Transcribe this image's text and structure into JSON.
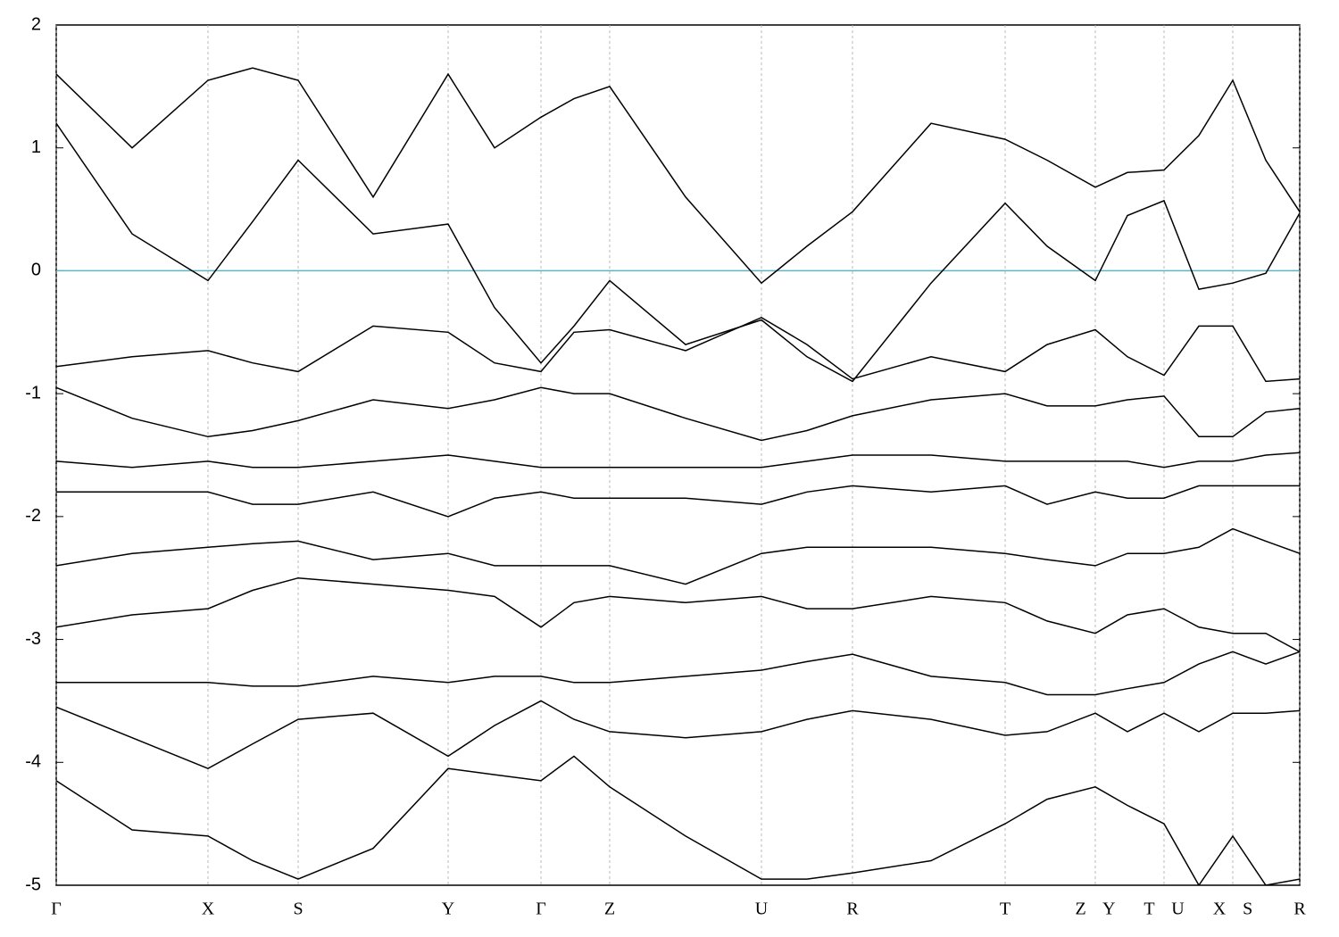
{
  "chart_data": {
    "type": "line",
    "x": [
      0,
      0.85,
      1.7,
      2.2,
      2.71,
      3.55,
      4.39,
      4.91,
      5.43,
      5.8,
      6.2,
      7.05,
      7.9,
      8.41,
      8.92,
      9.8,
      10.63,
      11.1,
      11.64,
      12.0,
      12.41,
      12.8,
      13.18,
      13.55,
      13.93
    ],
    "xlim": [
      0,
      13.93
    ],
    "xticks": [
      {
        "value": 0,
        "label": "Γ"
      },
      {
        "value": 1.7,
        "label": "X"
      },
      {
        "value": 2.71,
        "label": "S"
      },
      {
        "value": 4.39,
        "label": "Y"
      },
      {
        "value": 5.43,
        "label": "Γ"
      },
      {
        "value": 6.2,
        "label": "Z"
      },
      {
        "value": 7.9,
        "label": "U"
      },
      {
        "value": 8.92,
        "label": "R"
      },
      {
        "value": 10.63,
        "label": "T"
      },
      {
        "value": 11.64,
        "label": "Z Y"
      },
      {
        "value": 12.41,
        "label": "T U"
      },
      {
        "value": 13.18,
        "label": "X S"
      },
      {
        "value": 13.93,
        "label": "R"
      }
    ],
    "ylim": [
      -5,
      2
    ],
    "yticks": [
      -5,
      -4,
      -3,
      -2,
      -1,
      0,
      1,
      2
    ],
    "grid": true,
    "hline": {
      "value": 0,
      "color": "#5fb3c4"
    },
    "series": [
      {
        "color": "#000000",
        "values": [
          1.2,
          0.3,
          -0.08,
          0.4,
          0.9,
          0.3,
          0.38,
          -0.3,
          -0.75,
          -0.45,
          -0.08,
          -0.6,
          -0.4,
          -0.7,
          -0.9,
          -0.1,
          0.55,
          0.2,
          -0.08,
          0.45,
          0.57,
          -0.15,
          -0.1,
          -0.02,
          0.47
        ]
      },
      {
        "color": "#000000",
        "values": [
          1.6,
          1.0,
          1.55,
          1.65,
          1.55,
          0.6,
          1.6,
          1.0,
          1.25,
          1.4,
          1.5,
          0.6,
          -0.1,
          0.2,
          0.48,
          1.2,
          1.07,
          0.9,
          0.68,
          0.8,
          0.82,
          1.1,
          1.55,
          0.9,
          0.48
        ]
      },
      {
        "color": "#000000",
        "values": [
          -0.78,
          -0.7,
          -0.65,
          -0.75,
          -0.82,
          -0.45,
          -0.5,
          -0.75,
          -0.82,
          -0.5,
          -0.48,
          -0.65,
          -0.38,
          -0.6,
          -0.88,
          -0.7,
          -0.82,
          -0.6,
          -0.48,
          -0.7,
          -0.85,
          -0.45,
          -0.45,
          -0.9,
          -0.88
        ]
      },
      {
        "color": "#000000",
        "values": [
          -0.95,
          -1.2,
          -1.35,
          -1.3,
          -1.22,
          -1.05,
          -1.12,
          -1.05,
          -0.95,
          -1.0,
          -1.0,
          -1.2,
          -1.38,
          -1.3,
          -1.18,
          -1.05,
          -1.0,
          -1.1,
          -1.1,
          -1.05,
          -1.02,
          -1.35,
          -1.35,
          -1.15,
          -1.12
        ]
      },
      {
        "color": "#000000",
        "values": [
          -1.55,
          -1.6,
          -1.55,
          -1.6,
          -1.6,
          -1.55,
          -1.5,
          -1.55,
          -1.6,
          -1.6,
          -1.6,
          -1.6,
          -1.6,
          -1.55,
          -1.5,
          -1.5,
          -1.55,
          -1.55,
          -1.55,
          -1.55,
          -1.6,
          -1.55,
          -1.55,
          -1.5,
          -1.48
        ]
      },
      {
        "color": "#000000",
        "values": [
          -1.8,
          -1.8,
          -1.8,
          -1.9,
          -1.9,
          -1.8,
          -2.0,
          -1.85,
          -1.8,
          -1.85,
          -1.85,
          -1.85,
          -1.9,
          -1.8,
          -1.75,
          -1.8,
          -1.75,
          -1.9,
          -1.8,
          -1.85,
          -1.85,
          -1.75,
          -1.75,
          -1.75,
          -1.75
        ]
      },
      {
        "color": "#000000",
        "values": [
          -2.4,
          -2.3,
          -2.25,
          -2.22,
          -2.2,
          -2.35,
          -2.3,
          -2.4,
          -2.4,
          -2.4,
          -2.4,
          -2.55,
          -2.3,
          -2.25,
          -2.25,
          -2.25,
          -2.3,
          -2.35,
          -2.4,
          -2.3,
          -2.3,
          -2.25,
          -2.1,
          -2.2,
          -2.3
        ]
      },
      {
        "color": "#000000",
        "values": [
          -2.9,
          -2.8,
          -2.75,
          -2.6,
          -2.5,
          -2.55,
          -2.6,
          -2.65,
          -2.9,
          -2.7,
          -2.65,
          -2.7,
          -2.65,
          -2.75,
          -2.75,
          -2.65,
          -2.7,
          -2.85,
          -2.95,
          -2.8,
          -2.75,
          -2.9,
          -2.95,
          -2.95,
          -3.1
        ]
      },
      {
        "color": "#000000",
        "values": [
          -3.35,
          -3.35,
          -3.35,
          -3.38,
          -3.38,
          -3.3,
          -3.35,
          -3.3,
          -3.3,
          -3.35,
          -3.35,
          -3.3,
          -3.25,
          -3.18,
          -3.12,
          -3.3,
          -3.35,
          -3.45,
          -3.45,
          -3.4,
          -3.35,
          -3.2,
          -3.1,
          -3.2,
          -3.1
        ]
      },
      {
        "color": "#000000",
        "values": [
          -3.55,
          -3.8,
          -4.05,
          -3.85,
          -3.65,
          -3.6,
          -3.95,
          -3.7,
          -3.5,
          -3.65,
          -3.75,
          -3.8,
          -3.75,
          -3.65,
          -3.58,
          -3.65,
          -3.78,
          -3.75,
          -3.6,
          -3.75,
          -3.6,
          -3.75,
          -3.6,
          -3.6,
          -3.58
        ]
      },
      {
        "color": "#000000",
        "values": [
          -4.15,
          -4.55,
          -4.6,
          -4.8,
          -4.95,
          -4.7,
          -4.05,
          -4.1,
          -4.15,
          -3.95,
          -4.2,
          -4.6,
          -4.95,
          -4.95,
          -4.9,
          -4.8,
          -4.5,
          -4.3,
          -4.2,
          -4.35,
          -4.5,
          -5.0,
          -4.6,
          -5.0,
          -4.95
        ]
      }
    ]
  }
}
